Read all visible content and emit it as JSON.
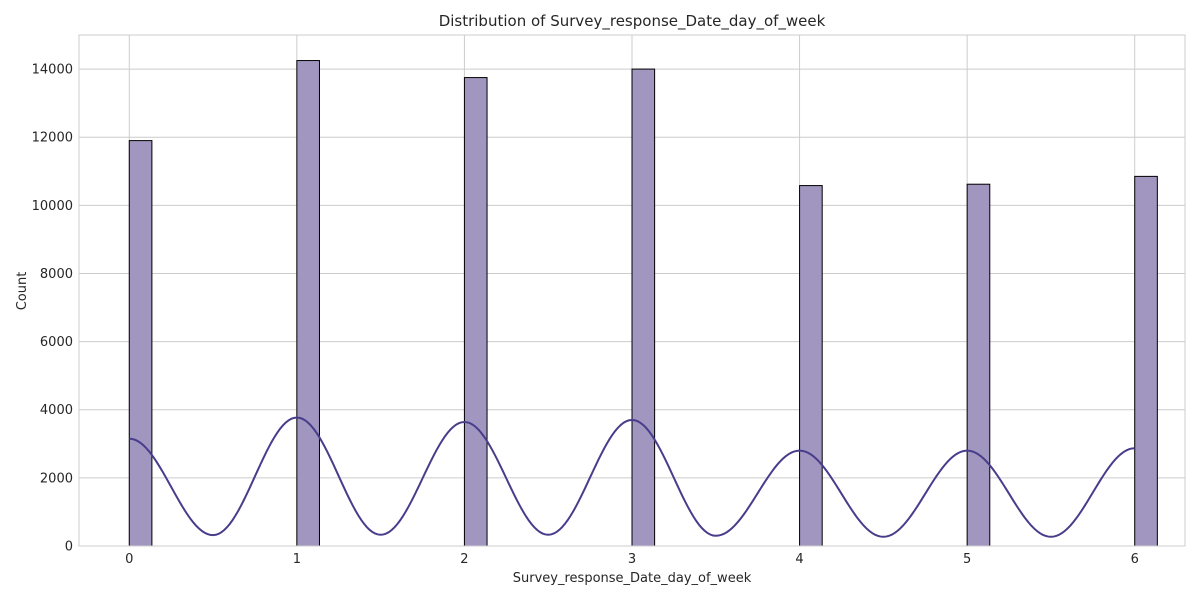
{
  "chart_data": {
    "type": "bar",
    "title": "Distribution of Survey_response_Date_day_of_week",
    "xlabel": "Survey_response_Date_day_of_week",
    "ylabel": "Count",
    "xlim": [
      -0.3,
      6.3
    ],
    "ylim": [
      0,
      15000
    ],
    "xticks": [
      0,
      1,
      2,
      3,
      4,
      5,
      6
    ],
    "yticks": [
      0,
      2000,
      4000,
      6000,
      8000,
      10000,
      12000,
      14000
    ],
    "grid": true,
    "bar_color": "#a096bf",
    "bar_edge_color": "#000000",
    "bar_width": 0.135,
    "series": [
      {
        "kind": "histogram",
        "x": [
          0,
          1,
          2,
          3,
          4,
          5,
          6
        ],
        "values": [
          11900,
          14250,
          13750,
          14000,
          10580,
          10620,
          10850
        ]
      },
      {
        "kind": "kde",
        "color": "#483d8b",
        "peaks_x": [
          0,
          1,
          2,
          3,
          4,
          5,
          6
        ],
        "peaks_y": [
          3150,
          3770,
          3640,
          3700,
          2800,
          2800,
          2870
        ],
        "troughs_y": [
          320,
          330,
          330,
          300,
          270,
          270
        ]
      }
    ]
  }
}
